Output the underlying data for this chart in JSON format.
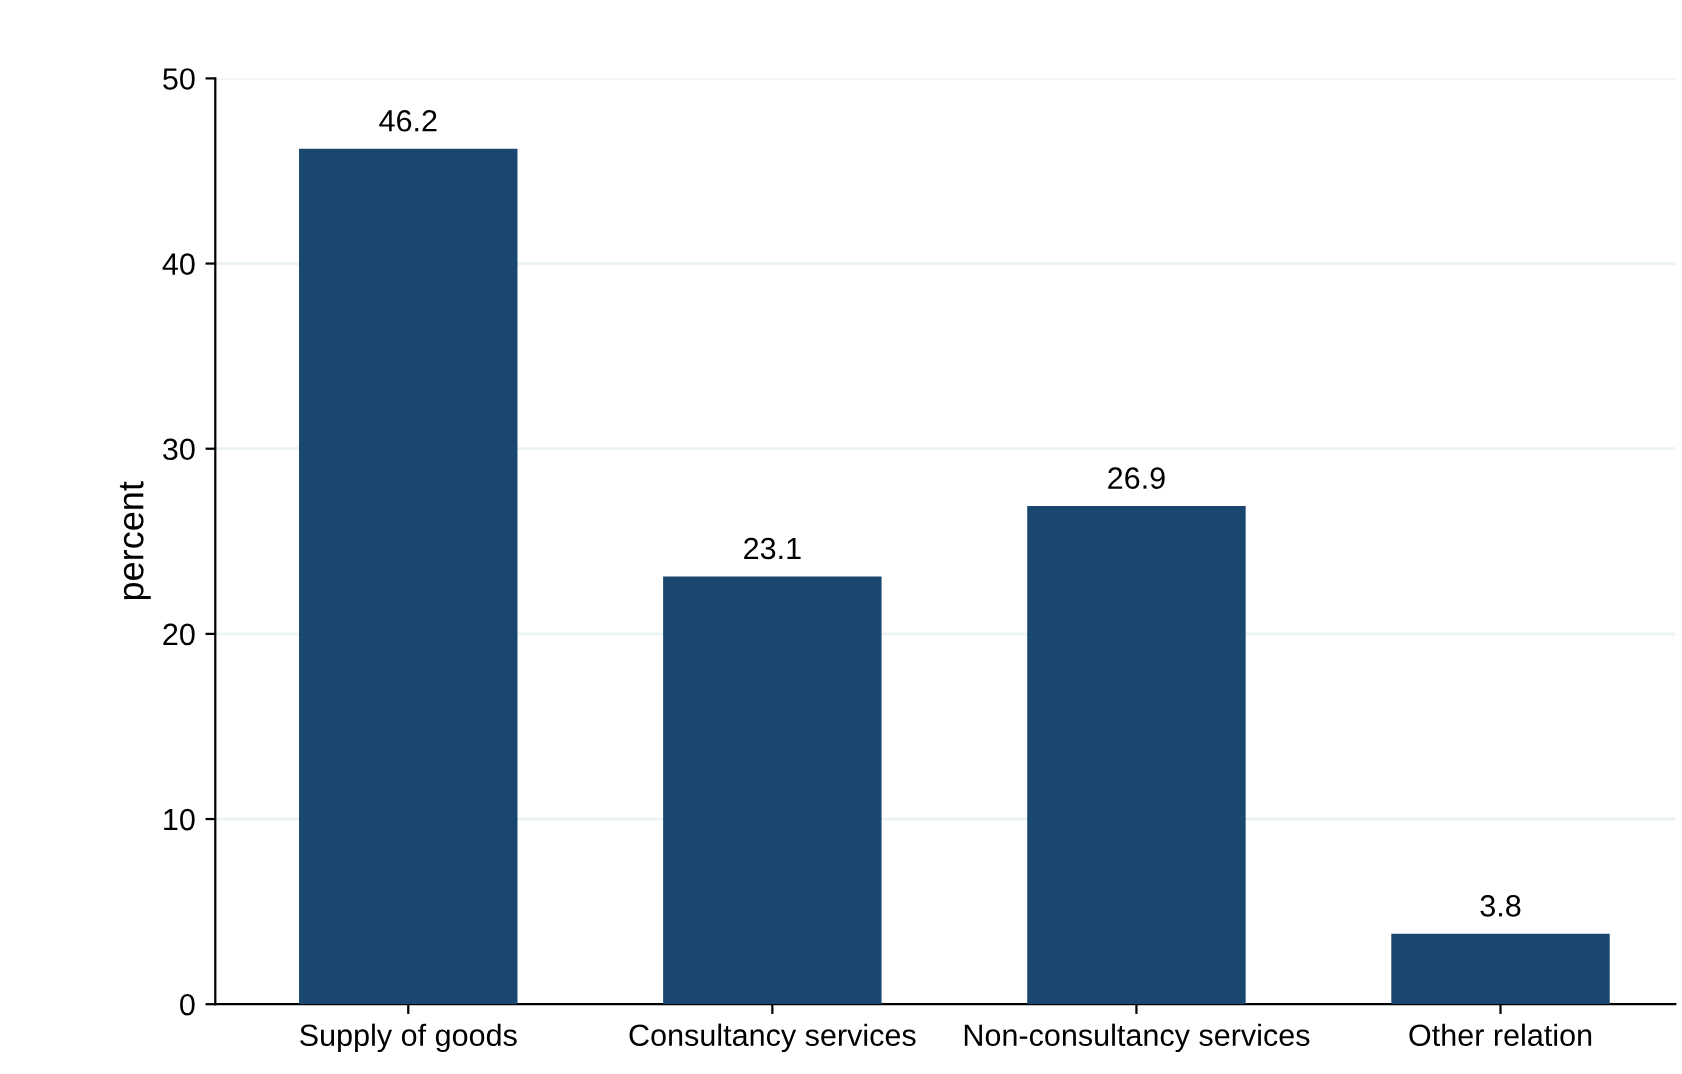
{
  "chart_data": {
    "type": "bar",
    "ylabel": "percent",
    "categories": [
      "Supply of goods",
      "Consultancy services",
      "Non-consultancy services",
      "Other relation"
    ],
    "values": [
      46.2,
      23.1,
      26.9,
      3.8
    ],
    "color": "#1a476f",
    "ylim": [
      0,
      50
    ],
    "yticks": [
      0,
      10,
      20,
      30,
      40,
      50
    ],
    "grid": "y",
    "data_labels": true
  }
}
